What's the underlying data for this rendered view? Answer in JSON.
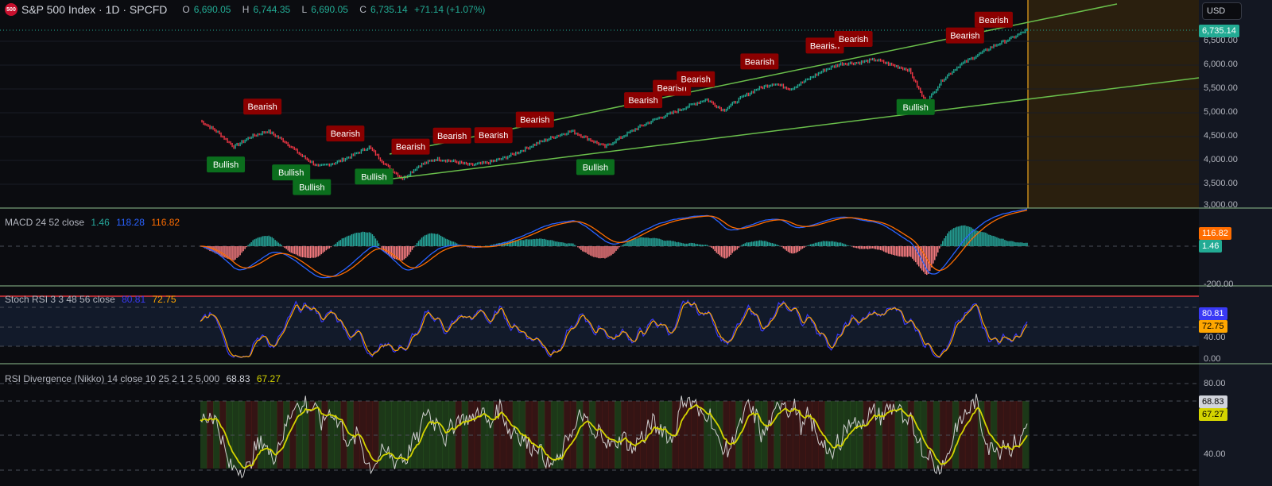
{
  "header": {
    "logo_text": "500",
    "symbol": "S&P 500 Index · 1D · SPCFD",
    "open_label": "O",
    "open": "6,690.05",
    "high_label": "H",
    "high": "6,744.35",
    "low_label": "L",
    "low": "6,690.05",
    "close_label": "C",
    "close": "6,735.14",
    "change": "+71.14 (+1.07%)"
  },
  "currency": "USD",
  "price_axis": {
    "last_price": "6,735.14",
    "ticks": [
      "6,500.00",
      "6,000.00",
      "5,500.00",
      "5,000.00",
      "4,500.00",
      "4,000.00",
      "3,500.00",
      "3,000.00"
    ]
  },
  "macd": {
    "title": "MACD 24 52 close",
    "hist": "1.46",
    "macd": "118.28",
    "signal": "116.82",
    "axis_ticks": [
      "-200.00"
    ],
    "colors": {
      "macd": "#2962ff",
      "signal": "#ff6d00",
      "hist": "#26a69a"
    }
  },
  "stoch": {
    "title": "Stoch RSI 3 3 48 56 close",
    "k": "80.81",
    "d": "72.75",
    "axis_ticks": [
      "40.00",
      "0.00"
    ],
    "colors": {
      "k": "#3a3af5",
      "d": "#ffa600"
    }
  },
  "rsi": {
    "title": "RSI Divergence (Nikko) 14 close 10 25 2 1 2 5,000",
    "rsi": "68.83",
    "ma": "67.27",
    "axis_ticks": [
      "80.00",
      "40.00"
    ]
  },
  "signals": [
    {
      "label": "Bullish",
      "at": 0.03
    },
    {
      "label": "Bearish",
      "at": 0.075
    },
    {
      "label": "Bullish",
      "at": 0.11
    },
    {
      "label": "Bullish",
      "at": 0.135
    },
    {
      "label": "Bearish",
      "at": 0.175
    },
    {
      "label": "Bullish",
      "at": 0.21
    },
    {
      "label": "Bearish",
      "at": 0.255
    },
    {
      "label": "Bearish",
      "at": 0.305
    },
    {
      "label": "Bearish",
      "at": 0.355
    },
    {
      "label": "Bearish",
      "at": 0.405
    },
    {
      "label": "Bullish",
      "at": 0.477
    },
    {
      "label": "Bearish",
      "at": 0.535
    },
    {
      "label": "Bearish",
      "at": 0.57
    },
    {
      "label": "Bearish",
      "at": 0.6
    },
    {
      "label": "Bearish",
      "at": 0.676
    },
    {
      "label": "Bearish",
      "at": 0.755
    },
    {
      "label": "Bearish",
      "at": 0.79
    },
    {
      "label": "Bullish",
      "at": 0.866
    },
    {
      "label": "Bearish",
      "at": 0.925
    },
    {
      "label": "Bearish",
      "at": 0.96
    }
  ],
  "chart_data": {
    "type": "line",
    "series": [
      {
        "values": [
          4833,
          4600,
          4283,
          4500,
          4617,
          4400,
          4100,
          3867,
          3950,
          4100,
          4283,
          3900,
          3617,
          3900,
          4033,
          3980,
          3900,
          3950,
          4050,
          4200,
          4367,
          4500,
          4617,
          4450,
          4283,
          4500,
          4700,
          4867,
          5000,
          5150,
          5283,
          5050,
          5300,
          5500,
          5617,
          5500,
          5700,
          5900,
          6033,
          6050,
          6117,
          6000,
          5900,
          5200,
          5700,
          6000,
          6200,
          6400,
          6550,
          6735
        ]
      }
    ],
    "ylim": [
      3000,
      6700
    ]
  },
  "colors": {
    "bull": "#22ab94",
    "bear": "#f23645",
    "trend": "#6abf4b",
    "bull_label": "#0b6e1d",
    "bear_label": "#8b0000"
  }
}
